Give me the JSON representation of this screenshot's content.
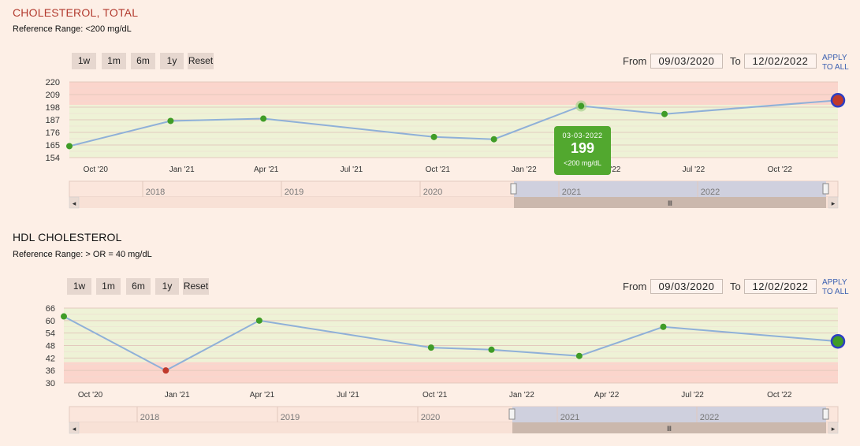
{
  "panels": [
    {
      "title": "CHOLESTEROL, TOTAL",
      "reference": "Reference Range: <200 mg/dL",
      "range_buttons": [
        "1w",
        "1m",
        "6m",
        "1y",
        "Reset"
      ],
      "from_label": "From",
      "from_value": "09/03/2020",
      "to_label": "To",
      "to_value": "12/02/2022",
      "apply_line1": "APPLY",
      "apply_line2": "TO ALL",
      "navigator_years": [
        "2018",
        "2019",
        "2020",
        "2021",
        "2022"
      ],
      "tooltip": {
        "date": "03-03-2022",
        "value": "199",
        "range": "<200 mg/dL"
      }
    },
    {
      "title": "HDL CHOLESTEROL",
      "reference": "Reference Range: > OR = 40 mg/dL",
      "range_buttons": [
        "1w",
        "1m",
        "6m",
        "1y",
        "Reset"
      ],
      "from_label": "From",
      "from_value": "09/03/2020",
      "to_label": "To",
      "to_value": "12/02/2022",
      "apply_line1": "APPLY",
      "apply_line2": "TO ALL",
      "navigator_years": [
        "2018",
        "2019",
        "2020",
        "2021",
        "2022"
      ]
    }
  ],
  "colors": {
    "title_total": "#b23a2e",
    "title_hdl": "#111111",
    "line": "#8fb0d8",
    "normal_point": "#3f9c27",
    "abnormal_point": "#c0392b",
    "normal_band": "#eef2d6",
    "abnormal_band": "#fbd5cc",
    "latest_ring": "#2e3fc4"
  },
  "chart_data": [
    {
      "type": "line",
      "title": "CHOLESTEROL, TOTAL",
      "ylim": [
        154,
        220
      ],
      "y_ticks": [
        "220",
        "209",
        "198",
        "187",
        "176",
        "165",
        "154"
      ],
      "x_ticks": [
        "Oct '20",
        "Jan '21",
        "Apr '21",
        "Jul '21",
        "Oct '21",
        "Jan '22",
        "Apr '22",
        "Jul '22",
        "Oct '22"
      ],
      "normal_range": [
        154,
        200
      ],
      "grid": true,
      "points": [
        {
          "x": "2020-09-03",
          "y": 164,
          "status": "normal"
        },
        {
          "x": "2020-12-20",
          "y": 186,
          "status": "normal"
        },
        {
          "x": "2021-03-29",
          "y": 188,
          "status": "normal"
        },
        {
          "x": "2021-09-27",
          "y": 172,
          "status": "normal"
        },
        {
          "x": "2021-11-30",
          "y": 170,
          "status": "normal"
        },
        {
          "x": "2022-03-03",
          "y": 199,
          "status": "normal"
        },
        {
          "x": "2022-05-31",
          "y": 192,
          "status": "normal"
        },
        {
          "x": "2022-12-02",
          "y": 204,
          "status": "abnormal",
          "latest": true
        }
      ]
    },
    {
      "type": "line",
      "title": "HDL CHOLESTEROL",
      "ylim": [
        30,
        66
      ],
      "y_ticks": [
        "66",
        "60",
        "54",
        "48",
        "42",
        "36",
        "30"
      ],
      "x_ticks": [
        "Oct '20",
        "Jan '21",
        "Apr '21",
        "Jul '21",
        "Oct '21",
        "Jan '22",
        "Apr '22",
        "Jul '22",
        "Oct '22"
      ],
      "normal_range": [
        40,
        66
      ],
      "grid": true,
      "points": [
        {
          "x": "2020-09-03",
          "y": 62,
          "status": "normal"
        },
        {
          "x": "2020-12-20",
          "y": 36,
          "status": "abnormal"
        },
        {
          "x": "2021-03-29",
          "y": 60,
          "status": "normal"
        },
        {
          "x": "2021-09-27",
          "y": 47,
          "status": "normal"
        },
        {
          "x": "2021-11-30",
          "y": 46,
          "status": "normal"
        },
        {
          "x": "2022-03-03",
          "y": 43,
          "status": "normal"
        },
        {
          "x": "2022-05-31",
          "y": 57,
          "status": "normal"
        },
        {
          "x": "2022-12-02",
          "y": 50,
          "status": "normal",
          "latest": true
        }
      ]
    }
  ]
}
